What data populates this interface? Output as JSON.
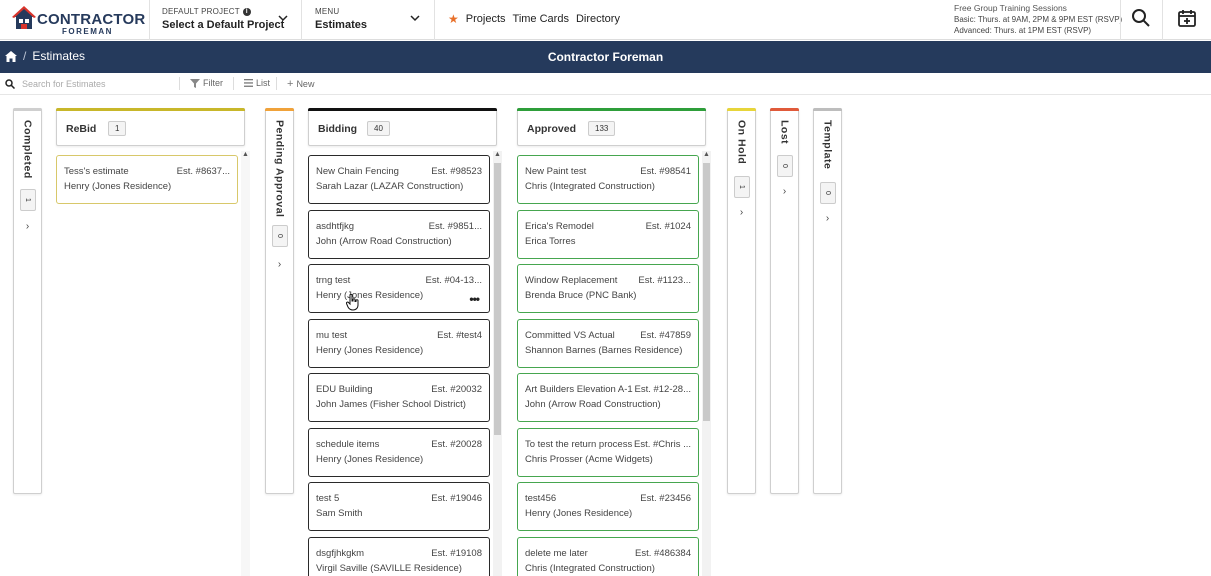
{
  "header": {
    "logo_word": "CONTRACTOR",
    "logo_sub": "FOREMAN",
    "default_project_label": "DEFAULT PROJECT",
    "default_project_value": "Select a Default Project",
    "menu_label": "MENU",
    "menu_value": "Estimates",
    "quick_links": [
      "Projects",
      "Time Cards",
      "Directory"
    ],
    "training_title": "Free Group Training Sessions",
    "training_basic": "Basic: Thurs. at 9AM, 2PM & 9PM EST (RSVP)",
    "training_advanced": "Advanced: Thurs. at 1PM EST (RSVP)",
    "icons": [
      "search-icon",
      "calendar-add-icon"
    ]
  },
  "navbar": {
    "breadcrumb": "Estimates",
    "title": "Contractor Foreman"
  },
  "toolbar": {
    "search_placeholder": "Search for Estimates",
    "filter": "Filter",
    "list": "List",
    "new": "New"
  },
  "colors": {
    "navy": "#253a5c",
    "completed": "#cfcfcf",
    "rebid": "#c8b72a",
    "pending": "#f0a23a",
    "bidding": "#111111",
    "approved": "#2e9e3a",
    "onhold": "#e7d53a",
    "lost": "#e05a3a",
    "template": "#bdbdbd"
  },
  "columns": {
    "completed": {
      "name": "Completed",
      "count": "1"
    },
    "rebid": {
      "name": "ReBid",
      "count": "1"
    },
    "pending": {
      "name": "Pending Approval",
      "count": "0"
    },
    "bidding": {
      "name": "Bidding",
      "count": "40"
    },
    "approved": {
      "name": "Approved",
      "count": "133"
    },
    "onhold": {
      "name": "On Hold",
      "count": "1"
    },
    "lost": {
      "name": "Lost",
      "count": "0"
    },
    "template": {
      "name": "Template",
      "count": "0"
    }
  },
  "rebid_cards": [
    {
      "title": "Tess's estimate",
      "est": "Est. #8637...",
      "client": "Henry (Jones Residence)"
    }
  ],
  "bidding_cards": [
    {
      "title": "New Chain Fencing",
      "est": "Est. #98523",
      "client": "Sarah Lazar (LAZAR Construction)"
    },
    {
      "title": "asdhtfjkg",
      "est": "Est. #9851...",
      "client": "John (Arrow Road Construction)"
    },
    {
      "title": "trng test",
      "est": "Est. #04-13...",
      "client": "Henry (Jones Residence)"
    },
    {
      "title": "mu test",
      "est": "Est. #test4",
      "client": "Henry (Jones Residence)"
    },
    {
      "title": "EDU Building",
      "est": "Est. #20032",
      "client": "John James (Fisher School District)"
    },
    {
      "title": "schedule items",
      "est": "Est. #20028",
      "client": "Henry (Jones Residence)"
    },
    {
      "title": "test 5",
      "est": "Est. #19046",
      "client": "Sam Smith"
    },
    {
      "title": "dsgfjhkgkm",
      "est": "Est. #19108",
      "client": "Virgil Saville (SAVILLE Residence)"
    }
  ],
  "approved_cards": [
    {
      "title": "New Paint test",
      "est": "Est. #98541",
      "client": "Chris (Integrated Construction)"
    },
    {
      "title": "Erica's Remodel",
      "est": "Est. #1024",
      "client": "Erica Torres"
    },
    {
      "title": "Window Replacement",
      "est": "Est. #1123...",
      "client": "Brenda Bruce (PNC Bank)"
    },
    {
      "title": "Committed VS Actual",
      "est": "Est. #47859",
      "client": "Shannon Barnes (Barnes Residence)"
    },
    {
      "title": "Art Builders Elevation A-1",
      "est": "Est. #12-28...",
      "client": "John (Arrow Road Construction)"
    },
    {
      "title": "To test the return process",
      "est": "Est. #Chris ...",
      "client": "Chris Prosser (Acme Widgets)"
    },
    {
      "title": "test456",
      "est": "Est. #23456",
      "client": "Henry (Jones Residence)"
    },
    {
      "title": "delete me later",
      "est": "Est. #486384",
      "client": "Chris (Integrated Construction)"
    }
  ]
}
